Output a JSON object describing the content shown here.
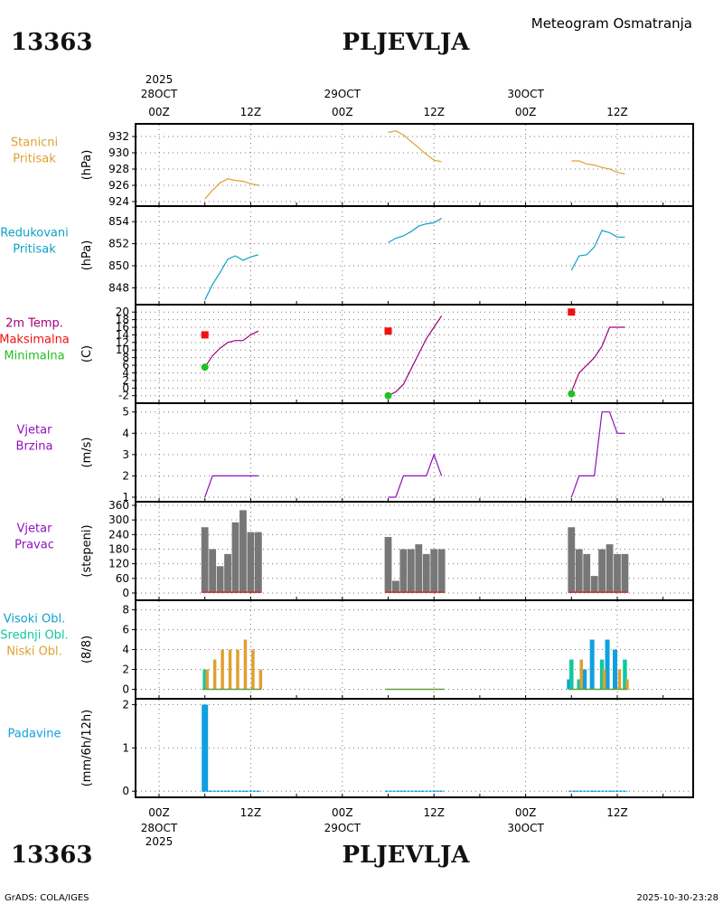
{
  "header": {
    "station_id": "13363",
    "station_name": "PLJEVLJA",
    "title": "Meteogram Osmatranja",
    "year": "2025",
    "days": [
      "28OCT",
      "29OCT",
      "30OCT"
    ],
    "hours": [
      "00Z",
      "12Z"
    ]
  },
  "footer": {
    "station_id": "13363",
    "station_name": "PLJEVLJA",
    "credit": "GrADS: COLA/IGES",
    "timestamp": "2025-10-30-23:28"
  },
  "colors": {
    "pressure": "#e0a030",
    "reduced": "#10a0c8",
    "temp": "#a0007a",
    "tmax": "#f01010",
    "tmin": "#20c020",
    "wind": "#9010c0",
    "bar": "#777777",
    "high": "#10a0e0",
    "mid": "#10c8a0",
    "low": "#e0a030",
    "precip": "#10a0e0"
  },
  "chart_data": [
    {
      "id": "p1",
      "type": "line",
      "labels": [
        "Stanicni",
        "Pritisak"
      ],
      "label_color": "pressure",
      "ylabel": "(hPa)",
      "ylim": [
        924,
        933
      ],
      "yticks": [
        924,
        926,
        928,
        930,
        932
      ],
      "series": [
        {
          "name": "Stanicni Pritisak",
          "color": "pressure",
          "segments": [
            [
              [
                6,
                924.3
              ],
              [
                7,
                925.4
              ],
              [
                8,
                926.3
              ],
              [
                9,
                926.8
              ],
              [
                10,
                926.6
              ],
              [
                11,
                926.5
              ],
              [
                12,
                926.2
              ],
              [
                13,
                926.0
              ]
            ],
            [
              [
                30,
                932.5
              ],
              [
                31,
                932.7
              ],
              [
                32,
                932.2
              ],
              [
                33,
                931.4
              ],
              [
                34,
                930.6
              ],
              [
                35,
                929.8
              ],
              [
                36,
                929.1
              ],
              [
                37,
                928.9
              ]
            ],
            [
              [
                54,
                929.0
              ],
              [
                55,
                929.0
              ],
              [
                56,
                928.6
              ],
              [
                57,
                928.5
              ],
              [
                58,
                928.2
              ],
              [
                59,
                928.0
              ],
              [
                60,
                927.6
              ],
              [
                61,
                927.4
              ]
            ]
          ]
        }
      ]
    },
    {
      "id": "p2",
      "type": "line",
      "labels": [
        "Redukovani",
        "Pritisak"
      ],
      "label_color": "reduced",
      "ylabel": "(hPa)",
      "ylim": [
        846.8,
        855
      ],
      "yticks": [
        848,
        850,
        852,
        854
      ],
      "series": [
        {
          "name": "Redukovani Pritisak",
          "color": "reduced",
          "segments": [
            [
              [
                6,
                846.9
              ],
              [
                7,
                848.3
              ],
              [
                8,
                849.4
              ],
              [
                9,
                850.6
              ],
              [
                10,
                850.9
              ],
              [
                11,
                850.5
              ],
              [
                12,
                850.8
              ],
              [
                13,
                851.0
              ]
            ],
            [
              [
                30,
                852.1
              ],
              [
                31,
                852.5
              ],
              [
                32,
                852.7
              ],
              [
                33,
                853.1
              ],
              [
                34,
                853.6
              ],
              [
                35,
                853.8
              ],
              [
                36,
                853.9
              ],
              [
                37,
                854.3
              ]
            ],
            [
              [
                54,
                849.6
              ],
              [
                55,
                850.9
              ],
              [
                56,
                851.0
              ],
              [
                57,
                851.7
              ],
              [
                58,
                853.2
              ],
              [
                59,
                853.0
              ],
              [
                60,
                852.6
              ],
              [
                61,
                852.6
              ]
            ]
          ]
        }
      ]
    },
    {
      "id": "p3",
      "type": "line",
      "labels": [
        "2m Temp.",
        "Maksimalna",
        "Minimalna"
      ],
      "label_colors": [
        "temp",
        "tmax",
        "tmin"
      ],
      "ylabel": "(C)",
      "ylim": [
        -3.5,
        21
      ],
      "yticks": [
        -2,
        0,
        2,
        4,
        6,
        8,
        10,
        12,
        14,
        16,
        18,
        20
      ],
      "series": [
        {
          "name": "2m Temp.",
          "color": "temp",
          "segments": [
            [
              [
                6,
                5.5
              ],
              [
                7,
                8.5
              ],
              [
                8,
                10.5
              ],
              [
                9,
                12
              ],
              [
                10,
                12.5
              ],
              [
                11,
                12.5
              ],
              [
                12,
                14
              ],
              [
                13,
                15
              ]
            ],
            [
              [
                30,
                -2
              ],
              [
                31,
                -1
              ],
              [
                32,
                1
              ],
              [
                33,
                5
              ],
              [
                34,
                9
              ],
              [
                35,
                13
              ],
              [
                36,
                16
              ],
              [
                37,
                19
              ]
            ],
            [
              [
                54,
                -1
              ],
              [
                55,
                4
              ],
              [
                56,
                6
              ],
              [
                57,
                8
              ],
              [
                58,
                11
              ],
              [
                59,
                16
              ],
              [
                60,
                16
              ],
              [
                61,
                16
              ]
            ]
          ]
        }
      ],
      "max_markers": [
        [
          6,
          14
        ],
        [
          30,
          15
        ],
        [
          54,
          20
        ]
      ],
      "min_markers": [
        [
          6,
          5.5
        ],
        [
          30,
          -2
        ],
        [
          54,
          -1.5
        ]
      ]
    },
    {
      "id": "p4",
      "type": "line",
      "labels": [
        "Vjetar",
        "Brzina"
      ],
      "label_color": "wind",
      "ylabel": "(m/s)",
      "ylim": [
        1,
        5.2
      ],
      "yticks": [
        1,
        2,
        3,
        4,
        5
      ],
      "series": [
        {
          "name": "Vjetar Brzina",
          "color": "wind",
          "segments": [
            [
              [
                6,
                1
              ],
              [
                7,
                2
              ],
              [
                8,
                2
              ],
              [
                9,
                2
              ],
              [
                10,
                2
              ],
              [
                11,
                2
              ],
              [
                12,
                2
              ],
              [
                13,
                2
              ]
            ],
            [
              [
                30,
                1
              ],
              [
                31,
                1
              ],
              [
                32,
                2
              ],
              [
                33,
                2
              ],
              [
                34,
                2
              ],
              [
                35,
                2
              ],
              [
                36,
                3
              ],
              [
                37,
                2
              ]
            ],
            [
              [
                54,
                1
              ],
              [
                55,
                2
              ],
              [
                56,
                2
              ],
              [
                57,
                2
              ],
              [
                58,
                5
              ],
              [
                59,
                5
              ],
              [
                60,
                4
              ],
              [
                61,
                4
              ]
            ]
          ]
        }
      ]
    },
    {
      "id": "p5",
      "type": "bar",
      "labels": [
        "Vjetar",
        "Pravac"
      ],
      "label_color": "wind",
      "ylabel": "(stepeni)",
      "ylim": [
        -15,
        360
      ],
      "yticks": [
        0,
        60,
        120,
        180,
        240,
        300,
        360
      ],
      "series": [
        {
          "name": "Vjetar Pravac",
          "color": "bar",
          "points": [
            [
              6,
              270
            ],
            [
              7,
              180
            ],
            [
              8,
              110
            ],
            [
              9,
              160
            ],
            [
              10,
              290
            ],
            [
              11,
              340
            ],
            [
              12,
              250
            ],
            [
              13,
              250
            ],
            [
              30,
              230
            ],
            [
              31,
              50
            ],
            [
              32,
              180
            ],
            [
              33,
              180
            ],
            [
              34,
              200
            ],
            [
              35,
              160
            ],
            [
              36,
              180
            ],
            [
              37,
              180
            ],
            [
              54,
              270
            ],
            [
              55,
              180
            ],
            [
              56,
              160
            ],
            [
              57,
              70
            ],
            [
              58,
              180
            ],
            [
              59,
              200
            ],
            [
              60,
              160
            ],
            [
              61,
              160
            ]
          ]
        }
      ]
    },
    {
      "id": "p6",
      "type": "bar",
      "labels": [
        "Visoki Obl.",
        "Srednji Obl.",
        "Niski Obl."
      ],
      "label_colors": [
        "reduced",
        "mid",
        "low"
      ],
      "ylabel": "(8/8)",
      "ylim": [
        -0.5,
        8.6
      ],
      "yticks": [
        0,
        2,
        4,
        6,
        8
      ],
      "series": [
        {
          "name": "Visoki Obl.",
          "color": "high",
          "points": [
            [
              54,
              1
            ],
            [
              55,
              0
            ],
            [
              56,
              2
            ],
            [
              57,
              5
            ],
            [
              58,
              0
            ],
            [
              59,
              5
            ],
            [
              60,
              4
            ],
            [
              61,
              0
            ]
          ]
        },
        {
          "name": "Srednji Obl.",
          "color": "mid",
          "points": [
            [
              6,
              2
            ],
            [
              54,
              3
            ],
            [
              55,
              1
            ],
            [
              56,
              0
            ],
            [
              57,
              0
            ],
            [
              58,
              3
            ],
            [
              59,
              0
            ],
            [
              60,
              0
            ],
            [
              61,
              3
            ]
          ]
        },
        {
          "name": "Niski Obl.",
          "color": "low",
          "points": [
            [
              6,
              2
            ],
            [
              7,
              3
            ],
            [
              8,
              4
            ],
            [
              9,
              4
            ],
            [
              10,
              4
            ],
            [
              11,
              5
            ],
            [
              12,
              4
            ],
            [
              13,
              2
            ],
            [
              54,
              0
            ],
            [
              55,
              3
            ],
            [
              56,
              0
            ],
            [
              57,
              0
            ],
            [
              58,
              2
            ],
            [
              59,
              0
            ],
            [
              60,
              2
            ],
            [
              61,
              1
            ]
          ]
        }
      ]
    },
    {
      "id": "p7",
      "type": "bar",
      "labels": [
        "Padavine"
      ],
      "label_color": "precip",
      "ylabel": "(mm/6h/12h)",
      "ylim": [
        -0.1,
        2.05
      ],
      "yticks": [
        0,
        1,
        2
      ],
      "series": [
        {
          "name": "Padavine",
          "color": "precip",
          "points": [
            [
              6,
              2
            ],
            [
              7,
              0
            ],
            [
              8,
              0
            ],
            [
              9,
              0
            ],
            [
              10,
              0
            ],
            [
              11,
              0
            ],
            [
              12,
              0
            ],
            [
              13,
              0
            ],
            [
              30,
              0
            ],
            [
              31,
              0
            ],
            [
              32,
              0
            ],
            [
              33,
              0
            ],
            [
              34,
              0
            ],
            [
              35,
              0
            ],
            [
              36,
              0
            ],
            [
              37,
              0
            ],
            [
              54,
              0
            ],
            [
              55,
              0
            ],
            [
              56,
              0
            ],
            [
              57,
              0
            ],
            [
              58,
              0
            ],
            [
              59,
              0
            ],
            [
              60,
              0
            ],
            [
              61,
              0
            ]
          ]
        }
      ]
    }
  ]
}
